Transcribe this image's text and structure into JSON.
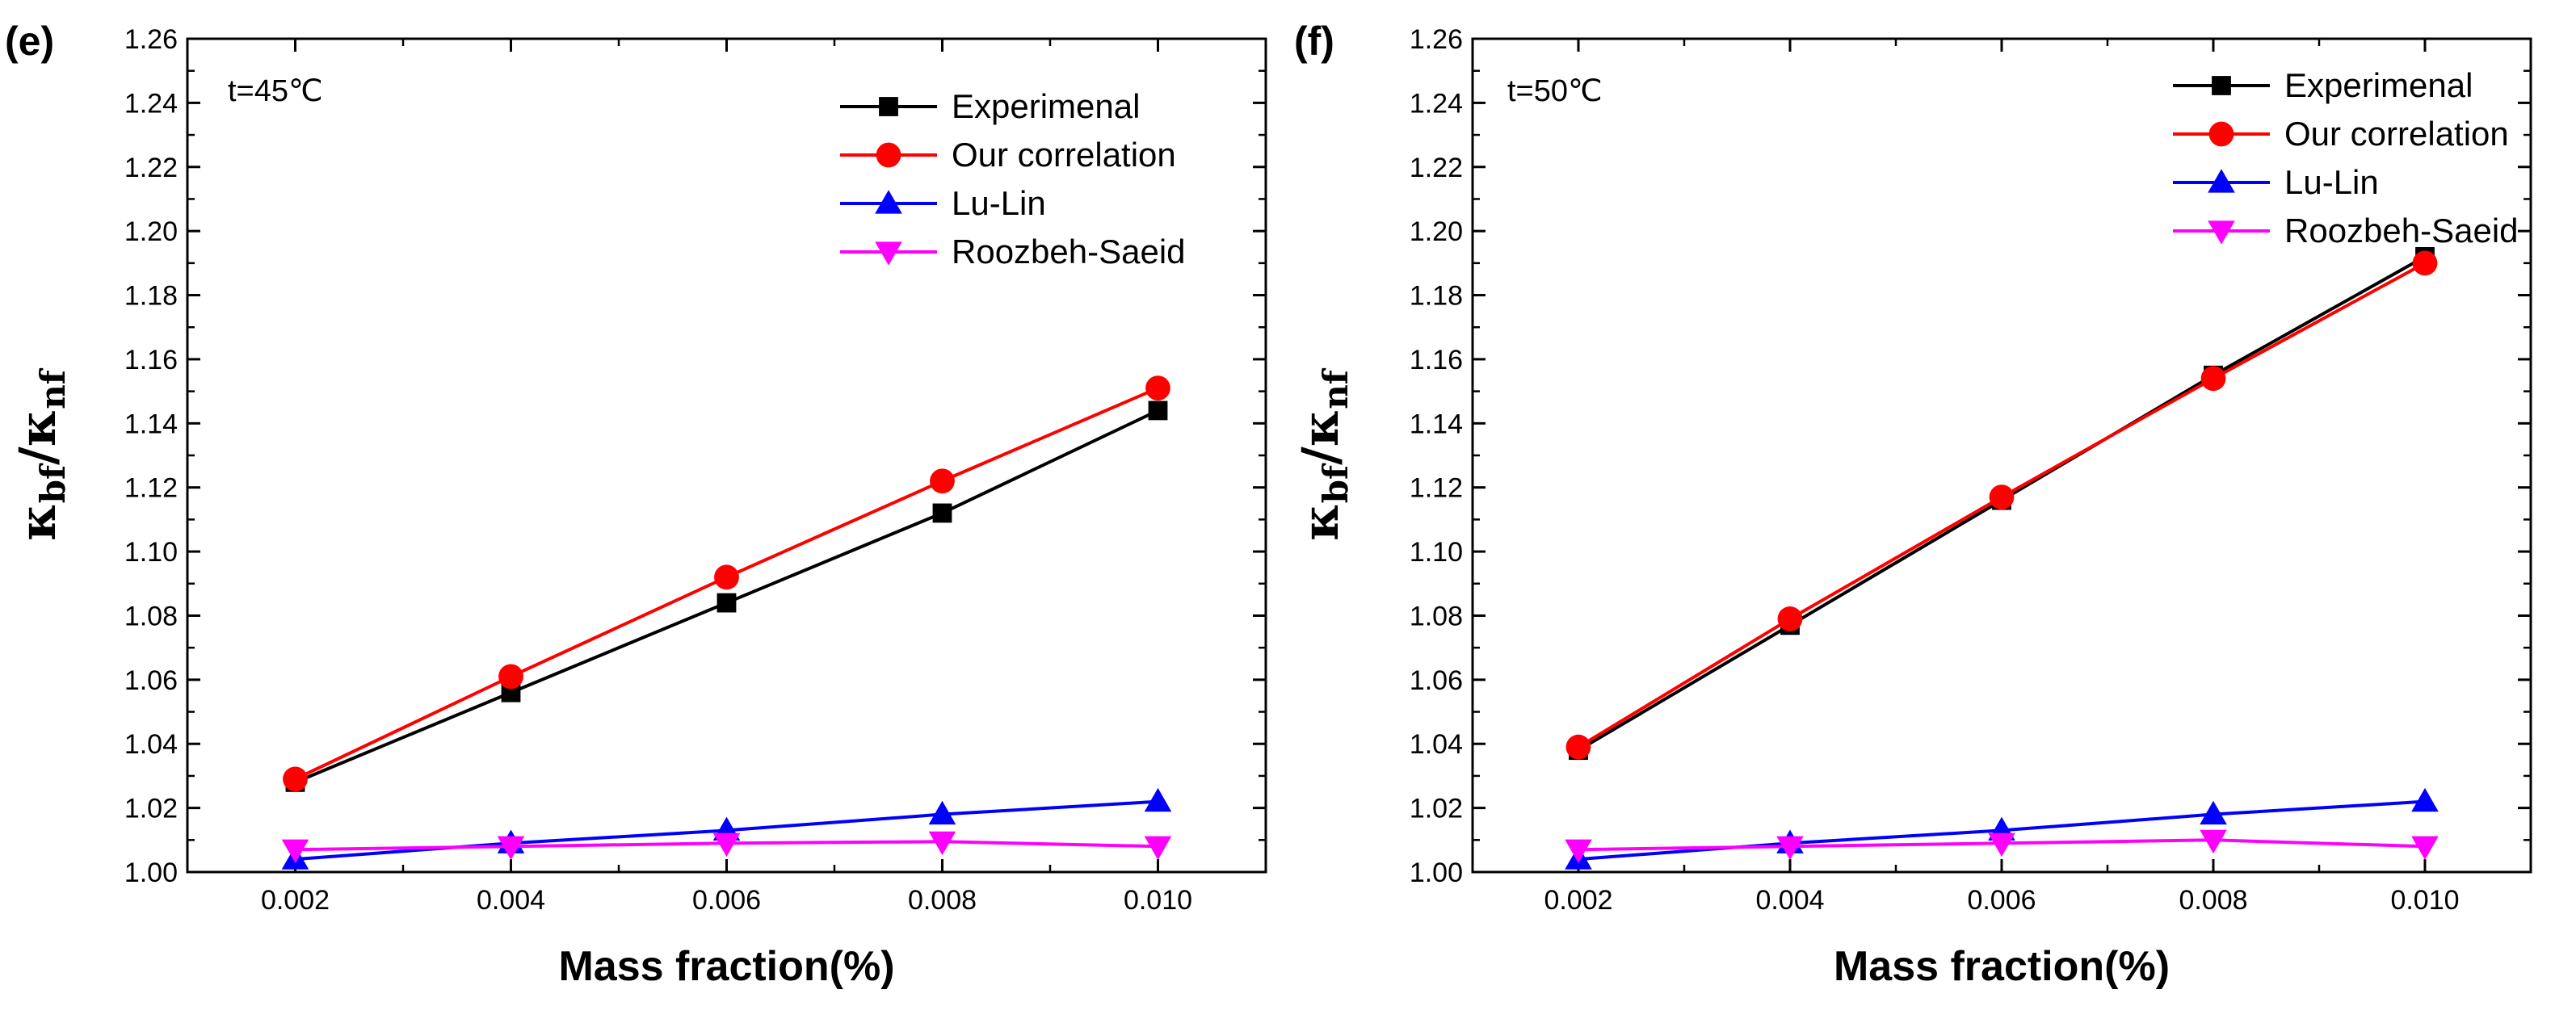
{
  "chart_data": [
    {
      "type": "line",
      "panel_label": "(e)",
      "annotation": "t=45℃",
      "xlabel": "Mass fraction(%)",
      "ylabel": {
        "base1": "κ",
        "sub1": "bf",
        "slash": "/",
        "base2": "κ",
        "sub2": "nf"
      },
      "x": [
        0.002,
        0.004,
        0.006,
        0.008,
        0.01
      ],
      "x_tick_labels": [
        "0.002",
        "0.004",
        "0.006",
        "0.008",
        "0.010"
      ],
      "xlim": [
        0.001,
        0.011
      ],
      "ylim": [
        1.0,
        1.26
      ],
      "y_tick_labels": [
        "1.00",
        "1.02",
        "1.04",
        "1.06",
        "1.08",
        "1.10",
        "1.12",
        "1.14",
        "1.16",
        "1.18",
        "1.20",
        "1.22",
        "1.24",
        "1.26"
      ],
      "legend_position": "top-right",
      "series": [
        {
          "name": "Experimenal",
          "color": "#000000",
          "marker": "square",
          "values": [
            1.028,
            1.056,
            1.084,
            1.112,
            1.144
          ]
        },
        {
          "name": "Our correlation",
          "color": "#ff0000",
          "marker": "circle",
          "values": [
            1.029,
            1.061,
            1.092,
            1.122,
            1.151
          ]
        },
        {
          "name": "Lu-Lin",
          "color": "#0000ff",
          "marker": "triangle-up",
          "values": [
            1.004,
            1.009,
            1.013,
            1.018,
            1.022
          ]
        },
        {
          "name": "Roozbeh-Saeid",
          "color": "#ff00ff",
          "marker": "triangle-down",
          "values": [
            1.007,
            1.008,
            1.009,
            1.0095,
            1.008
          ]
        }
      ]
    },
    {
      "type": "line",
      "panel_label": "(f)",
      "annotation": "t=50℃",
      "xlabel": "Mass fraction(%)",
      "ylabel": {
        "base1": "κ",
        "sub1": "bf",
        "slash": "/",
        "base2": "κ",
        "sub2": "nf"
      },
      "x": [
        0.002,
        0.004,
        0.006,
        0.008,
        0.01
      ],
      "x_tick_labels": [
        "0.002",
        "0.004",
        "0.006",
        "0.008",
        "0.010"
      ],
      "xlim": [
        0.001,
        0.011
      ],
      "ylim": [
        1.0,
        1.26
      ],
      "y_tick_labels": [
        "1.00",
        "1.02",
        "1.04",
        "1.06",
        "1.08",
        "1.10",
        "1.12",
        "1.14",
        "1.16",
        "1.18",
        "1.20",
        "1.22",
        "1.24",
        "1.26"
      ],
      "legend_position": "top-right",
      "series": [
        {
          "name": "Experimenal",
          "color": "#000000",
          "marker": "square",
          "values": [
            1.038,
            1.077,
            1.116,
            1.155,
            1.192
          ]
        },
        {
          "name": "Our correlation",
          "color": "#ff0000",
          "marker": "circle",
          "values": [
            1.039,
            1.079,
            1.117,
            1.154,
            1.19
          ]
        },
        {
          "name": "Lu-Lin",
          "color": "#0000ff",
          "marker": "triangle-up",
          "values": [
            1.004,
            1.009,
            1.013,
            1.018,
            1.022
          ]
        },
        {
          "name": "Roozbeh-Saeid",
          "color": "#ff00ff",
          "marker": "triangle-down",
          "values": [
            1.007,
            1.008,
            1.009,
            1.01,
            1.008
          ]
        }
      ]
    }
  ]
}
